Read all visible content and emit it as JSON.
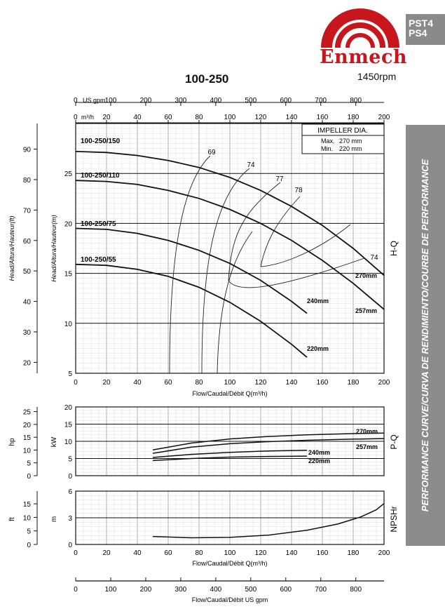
{
  "brand": {
    "name": "Enmech",
    "series_tab": "PST4\nPS4",
    "brand_color": "#c8161d",
    "tab_color": "#8a8a8a"
  },
  "page": {
    "title": "100-250",
    "speed": "1450rpm",
    "side_label": "PERFORMANCE CURVE/CURVA DE RENDIMIENTO/COURBE DE PERFORMANCE"
  },
  "chart_data": [
    {
      "type": "line",
      "id": "head",
      "side_label": "H-Q",
      "xlabel": "Flow/Caudal/Débit Q(m³/h)",
      "xlim": [
        0,
        200
      ],
      "ylim": [
        5,
        30
      ],
      "ylabel_left": "Head/Altura/Hauteur(ft)",
      "ylabel_right": "Head/Altura/Hauteur(m)",
      "x_ticks": [
        0,
        20,
        40,
        60,
        80,
        100,
        120,
        140,
        160,
        180,
        200
      ],
      "y_ticks_m": [
        5,
        10,
        15,
        20,
        25
      ],
      "y_ticks_ft": [
        20,
        30,
        40,
        50,
        60,
        70,
        80,
        90
      ],
      "top_axis_gpm_ticks": [
        0,
        100,
        200,
        300,
        400,
        500,
        600,
        700,
        800
      ],
      "top_axis_gpm_label": "US gpm",
      "top_axis_m3h_ticks": [
        0,
        20,
        40,
        60,
        80,
        100,
        120,
        140,
        160,
        180,
        200
      ],
      "top_axis_m3h_label": "m³/h",
      "impeller_box": {
        "title": "IMPELLER DIA.",
        "max_label": "Max.",
        "max_value": "270 mm",
        "min_label": "Min.",
        "min_value": "220 mm"
      },
      "model_labels": [
        "100-250/150",
        "100-250/110",
        "100-250/75",
        "100-250/55"
      ],
      "series": [
        {
          "name": "270mm",
          "x": [
            0,
            20,
            40,
            60,
            80,
            100,
            120,
            140,
            160,
            180,
            200
          ],
          "y": [
            27.2,
            27.1,
            26.8,
            26.3,
            25.6,
            24.6,
            23.3,
            21.7,
            19.8,
            17.5,
            14.8
          ]
        },
        {
          "name": "257mm",
          "x": [
            0,
            20,
            40,
            60,
            80,
            100,
            120,
            140,
            160,
            180,
            200
          ],
          "y": [
            24.3,
            24.2,
            23.9,
            23.3,
            22.5,
            21.4,
            20.0,
            18.3,
            16.3,
            14.0,
            11.4
          ]
        },
        {
          "name": "240mm",
          "x": [
            0,
            20,
            40,
            60,
            80,
            100,
            120,
            140,
            150
          ],
          "y": [
            19.5,
            19.4,
            19.0,
            18.3,
            17.3,
            16.0,
            14.3,
            12.2,
            11.0
          ]
        },
        {
          "name": "220mm",
          "x": [
            0,
            20,
            40,
            60,
            80,
            100,
            120,
            140,
            150
          ],
          "y": [
            15.9,
            15.8,
            15.4,
            14.7,
            13.6,
            12.1,
            10.2,
            7.9,
            6.6
          ]
        }
      ],
      "efficiency_labels": [
        "69",
        "74",
        "77",
        "78",
        "74"
      ]
    },
    {
      "type": "line",
      "id": "power",
      "side_label": "P-Q",
      "xlim": [
        0,
        200
      ],
      "ylim": [
        0,
        20
      ],
      "ylabel_left": "hp",
      "ylabel_right": "kW",
      "y_ticks_kw": [
        0,
        5,
        10,
        15,
        20
      ],
      "y_ticks_hp": [
        0,
        5,
        10,
        15,
        20,
        25
      ],
      "series": [
        {
          "name": "270mm",
          "x": [
            50,
            75,
            100,
            125,
            150,
            175,
            200
          ],
          "y": [
            7.5,
            9.5,
            10.7,
            11.4,
            11.9,
            12.2,
            12.4
          ]
        },
        {
          "name": "257mm",
          "x": [
            50,
            75,
            100,
            125,
            150,
            175,
            200
          ],
          "y": [
            6.5,
            8.3,
            9.3,
            9.9,
            10.3,
            10.6,
            10.8
          ]
        },
        {
          "name": "240mm",
          "x": [
            50,
            75,
            100,
            125,
            150
          ],
          "y": [
            5.3,
            6.2,
            6.8,
            7.2,
            7.4
          ]
        },
        {
          "name": "220mm",
          "x": [
            50,
            75,
            100,
            125,
            150
          ],
          "y": [
            4.4,
            5.0,
            5.4,
            5.6,
            5.7
          ]
        }
      ]
    },
    {
      "type": "line",
      "id": "npsh",
      "side_label": "NPSHr",
      "xlabel": "Flow/Caudal/Débit Q(m³/h)",
      "xlim": [
        0,
        200
      ],
      "ylim": [
        0,
        6
      ],
      "ylabel_left": "ft",
      "ylabel_right": "m",
      "y_ticks_m": [
        0,
        3,
        6
      ],
      "y_ticks_ft": [
        0,
        5,
        10,
        15
      ],
      "series": [
        {
          "name": "NPSHr",
          "x": [
            50,
            75,
            100,
            125,
            150,
            170,
            185,
            195,
            200
          ],
          "y": [
            0.9,
            0.75,
            0.8,
            1.05,
            1.6,
            2.3,
            3.1,
            3.9,
            4.6
          ]
        }
      ]
    }
  ],
  "bottom_axis": {
    "label": "Flow/Caudal/Débit  US gpm",
    "ticks": [
      0,
      100,
      200,
      300,
      400,
      500,
      600,
      700,
      800
    ]
  }
}
